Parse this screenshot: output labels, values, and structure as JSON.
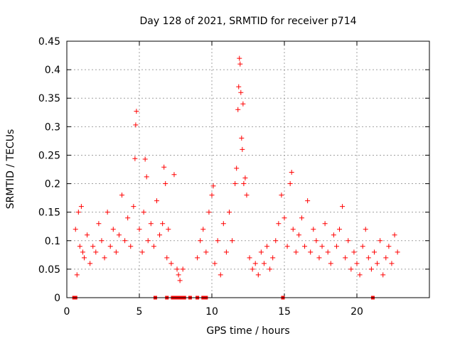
{
  "chart_data": {
    "type": "scatter",
    "title": "Day 128 of 2021, SRMTID for receiver p714",
    "xlabel": "GPS time / hours",
    "ylabel": "SRMTID / TECUs",
    "xlim": [
      0,
      25
    ],
    "ylim": [
      0,
      0.45
    ],
    "xticks": [
      0,
      5,
      10,
      15,
      20
    ],
    "yticks": [
      0,
      0.05,
      0.1,
      0.15,
      0.2,
      0.25,
      0.3,
      0.35,
      0.4,
      0.45
    ],
    "xtick_labels": [
      "0",
      "5",
      "10",
      "15",
      "20"
    ],
    "ytick_labels": [
      "0",
      "0.05",
      "0.1",
      "0.15",
      "0.2",
      "0.25",
      "0.3",
      "0.35",
      "0.4",
      "0.45"
    ],
    "grid": true,
    "marker": "+",
    "color": "#ff0000",
    "series": [
      {
        "name": "SRMTID",
        "x": [
          0.6,
          0.7,
          0.8,
          0.9,
          1.0,
          1.1,
          1.2,
          1.4,
          1.6,
          1.8,
          2.0,
          2.2,
          2.4,
          2.6,
          2.8,
          3.0,
          3.2,
          3.4,
          3.6,
          3.8,
          4.0,
          4.2,
          4.4,
          4.6,
          4.7,
          4.75,
          4.8,
          5.0,
          5.2,
          5.3,
          5.4,
          5.5,
          5.6,
          5.8,
          6.0,
          6.2,
          6.4,
          6.6,
          6.7,
          6.8,
          6.9,
          7.0,
          7.2,
          7.4,
          7.6,
          7.7,
          7.8,
          8.0,
          9.0,
          9.2,
          9.4,
          9.6,
          9.8,
          10.0,
          10.1,
          10.2,
          10.4,
          10.6,
          10.8,
          11.0,
          11.2,
          11.4,
          11.6,
          11.7,
          11.8,
          11.85,
          11.9,
          11.95,
          12.0,
          12.05,
          12.1,
          12.15,
          12.2,
          12.3,
          12.4,
          12.6,
          12.8,
          13.0,
          13.2,
          13.4,
          13.6,
          13.8,
          14.0,
          14.2,
          14.4,
          14.6,
          14.8,
          15.0,
          15.2,
          15.4,
          15.5,
          15.6,
          15.8,
          16.0,
          16.2,
          16.4,
          16.6,
          16.8,
          17.0,
          17.2,
          17.4,
          17.6,
          17.8,
          18.0,
          18.2,
          18.4,
          18.6,
          18.8,
          19.0,
          19.2,
          19.4,
          19.6,
          19.8,
          20.0,
          20.2,
          20.4,
          20.6,
          20.8,
          21.0,
          21.2,
          21.4,
          21.6,
          21.8,
          22.0,
          22.2,
          22.4,
          22.6,
          22.8
        ],
        "y": [
          0.12,
          0.04,
          0.15,
          0.09,
          0.16,
          0.08,
          0.07,
          0.11,
          0.06,
          0.09,
          0.08,
          0.13,
          0.1,
          0.07,
          0.15,
          0.09,
          0.12,
          0.08,
          0.11,
          0.18,
          0.1,
          0.14,
          0.09,
          0.16,
          0.244,
          0.303,
          0.327,
          0.12,
          0.08,
          0.15,
          0.243,
          0.212,
          0.1,
          0.13,
          0.09,
          0.17,
          0.11,
          0.13,
          0.229,
          0.2,
          0.07,
          0.12,
          0.06,
          0.216,
          0.05,
          0.04,
          0.03,
          0.05,
          0.07,
          0.1,
          0.12,
          0.08,
          0.15,
          0.18,
          0.196,
          0.06,
          0.1,
          0.04,
          0.13,
          0.08,
          0.15,
          0.1,
          0.2,
          0.227,
          0.33,
          0.37,
          0.42,
          0.41,
          0.36,
          0.28,
          0.26,
          0.34,
          0.2,
          0.21,
          0.18,
          0.07,
          0.05,
          0.06,
          0.04,
          0.08,
          0.06,
          0.09,
          0.05,
          0.07,
          0.1,
          0.13,
          0.18,
          0.14,
          0.09,
          0.2,
          0.22,
          0.12,
          0.08,
          0.11,
          0.14,
          0.09,
          0.17,
          0.08,
          0.12,
          0.1,
          0.07,
          0.09,
          0.13,
          0.08,
          0.06,
          0.11,
          0.09,
          0.12,
          0.16,
          0.07,
          0.1,
          0.05,
          0.08,
          0.06,
          0.04,
          0.09,
          0.12,
          0.07,
          0.05,
          0.08,
          0.06,
          0.1,
          0.04,
          0.07,
          0.09,
          0.06,
          0.11,
          0.08
        ]
      }
    ],
    "zero_points": [
      0.5,
      0.6,
      6.1,
      6.9,
      7.3,
      7.5,
      7.7,
      7.9,
      8.1,
      8.5,
      9.0,
      9.4,
      9.6,
      14.9,
      21.1
    ]
  }
}
